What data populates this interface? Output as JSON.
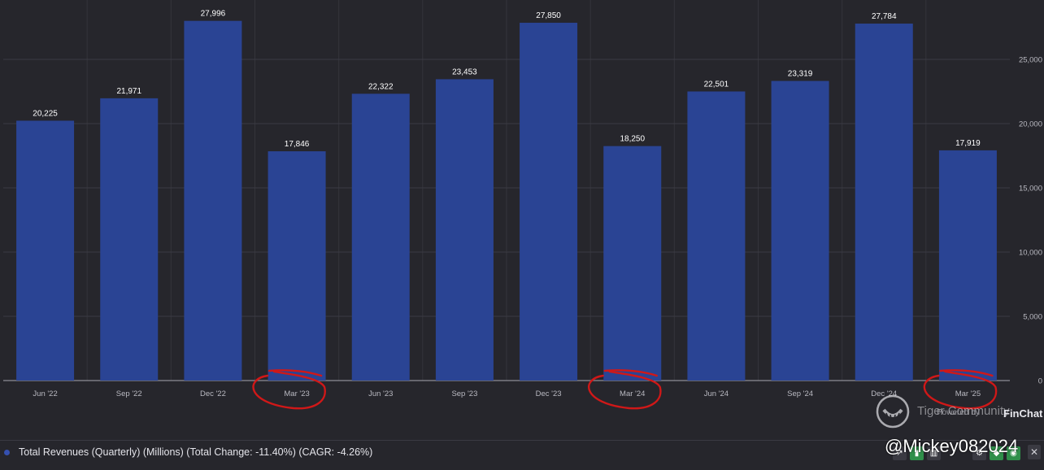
{
  "chart_data": {
    "type": "bar",
    "categories": [
      "Jun '22",
      "Sep '22",
      "Dec '22",
      "Mar '23",
      "Jun '23",
      "Sep '23",
      "Dec '23",
      "Mar '24",
      "Jun '24",
      "Sep '24",
      "Dec '24",
      "Mar '25"
    ],
    "series": [
      {
        "name": "Total Revenues (Quarterly) (Millions) (Total Change: -11.40%) (CAGR: -4.26%)",
        "values": [
          20225,
          21971,
          27996,
          17846,
          22322,
          23453,
          27850,
          18250,
          22501,
          23319,
          27784,
          17919
        ],
        "labels": [
          "20,225",
          "21,971",
          "27,996",
          "17,846",
          "22,322",
          "23,453",
          "27,850",
          "18,250",
          "22,501",
          "23,319",
          "27,784",
          "17,919"
        ],
        "color": "#2a4494"
      }
    ],
    "ylim": [
      0,
      30000
    ],
    "yticks": [
      0,
      5000,
      10000,
      15000,
      20000,
      25000
    ],
    "ytick_labels": [
      "0",
      "5,000",
      "10,000",
      "15,000",
      "20,000",
      "25,000"
    ],
    "y_axis_side": "right",
    "grid": true,
    "annotations": {
      "hand_drawn_circles_at": [
        "Mar '23",
        "Mar '24",
        "Mar '25"
      ],
      "circle_color": "#d01818"
    },
    "background": "#26262c"
  },
  "footer": {
    "powered_by": "Powered by",
    "brand": "FinChat",
    "watermark": "Tiger Community",
    "handle": "@Mickey082024"
  },
  "toolbar_icons": [
    "trend-icon",
    "bar-chart-icon",
    "column-chart-icon",
    "settings-icon",
    "tag-icon",
    "eye-icon",
    "close-icon"
  ]
}
